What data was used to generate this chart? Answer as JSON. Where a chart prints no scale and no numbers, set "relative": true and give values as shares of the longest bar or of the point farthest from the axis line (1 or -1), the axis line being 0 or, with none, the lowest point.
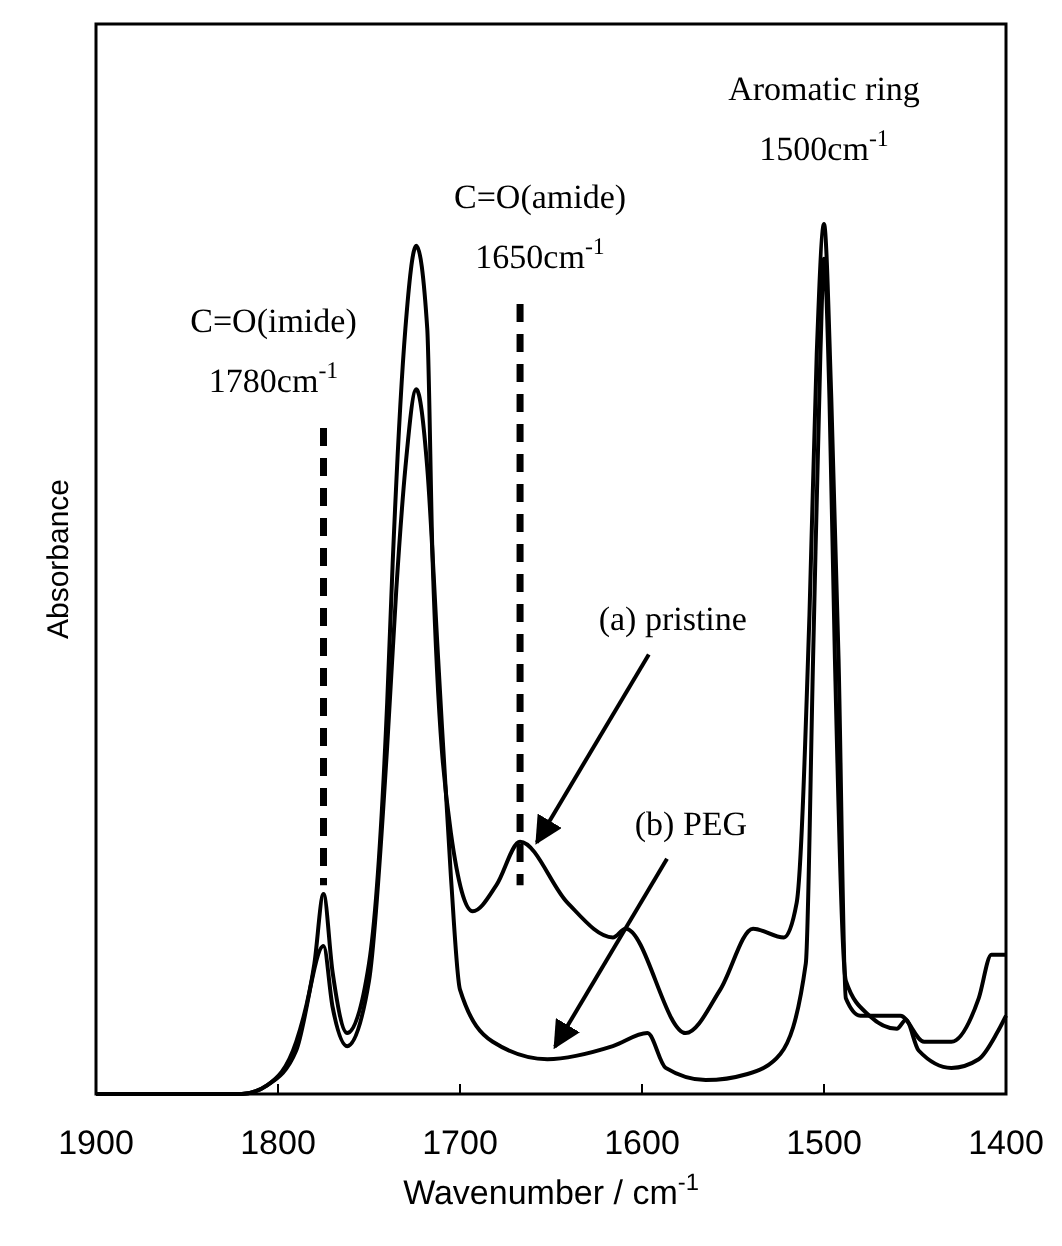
{
  "chart_data": {
    "type": "line",
    "relative": true,
    "xlabel": "Wavenumber / cm$^{-1}$",
    "ylabel": "Absorbance",
    "xlim": [
      1900,
      1400
    ],
    "xticks": [
      1900,
      1800,
      1700,
      1600,
      1500,
      1400
    ],
    "tick_labels": "x",
    "line_style": "solid",
    "series": [
      {
        "color": "#000000",
        "x": [
          1900,
          1850,
          1820,
          1806,
          1790,
          1780,
          1775,
          1770,
          1762,
          1750,
          1740,
          1737,
          1730,
          1724,
          1718,
          1715,
          1705,
          1693,
          1680,
          1667,
          1641,
          1616,
          1609,
          1576,
          1557,
          1539,
          1522,
          1515,
          1508,
          1504,
          1500,
          1496,
          1492,
          1488,
          1480,
          1458,
          1445,
          1430,
          1415,
          1408,
          1400
        ],
        "values": [
          0,
          0,
          0,
          0.01,
          0.06,
          0.15,
          0.23,
          0.14,
          0.07,
          0.15,
          0.45,
          0.61,
          0.88,
          0.975,
          0.88,
          0.61,
          0.3,
          0.21,
          0.24,
          0.29,
          0.22,
          0.18,
          0.19,
          0.07,
          0.12,
          0.19,
          0.18,
          0.22,
          0.55,
          0.85,
          1,
          0.8,
          0.5,
          0.11,
          0.09,
          0.09,
          0.06,
          0.06,
          0.11,
          0.16,
          0.16
        ]
      },
      {
        "color": "#000000",
        "x": [
          1900,
          1850,
          1820,
          1806,
          1790,
          1775,
          1770,
          1762,
          1750,
          1740,
          1735,
          1730,
          1724,
          1718,
          1712,
          1705,
          1700,
          1682,
          1652,
          1616,
          1597,
          1587,
          1565,
          1542,
          1524,
          1510,
          1506,
          1502,
          1500,
          1497,
          1494,
          1488,
          1475,
          1460,
          1455,
          1448,
          1430,
          1415,
          1405,
          1400
        ],
        "values": [
          0,
          0,
          0,
          0.01,
          0.05,
          0.17,
          0.1,
          0.055,
          0.13,
          0.4,
          0.58,
          0.72,
          0.81,
          0.72,
          0.5,
          0.25,
          0.12,
          0.06,
          0.04,
          0.055,
          0.07,
          0.03,
          0.016,
          0.023,
          0.046,
          0.15,
          0.5,
          0.85,
          0.96,
          0.8,
          0.5,
          0.13,
          0.09,
          0.075,
          0.085,
          0.05,
          0.03,
          0.04,
          0.07,
          0.09
        ]
      }
    ],
    "ref_lines": [
      {
        "axis": "x",
        "value": 1775,
        "line_style": "dashed",
        "color": "#000000",
        "label": "C=O(imide)\n1780cm$^{-1}$"
      },
      {
        "axis": "x",
        "value": 1667,
        "line_style": "dashed",
        "color": "#000000",
        "label": "C=O(amide)\n1650cm$^{-1}$"
      }
    ],
    "annotations": [
      "Aromatic ring\n1500cm$^{-1}$",
      {
        "text": "(a) pristine",
        "x": 1660,
        "y": 0.28
      },
      {
        "text": "(b) PEG",
        "x": 1650,
        "y": 0.045
      }
    ]
  }
}
